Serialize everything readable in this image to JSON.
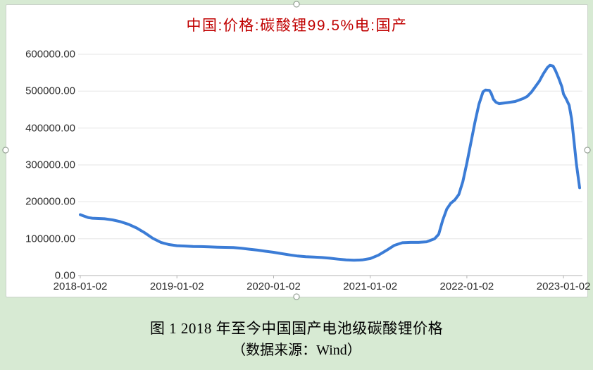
{
  "page": {
    "background_color": "#d7ead3"
  },
  "chart": {
    "title": "中国:价格:碳酸锂99.5%电:国产",
    "title_color": "#c00000",
    "line_color": "#3b7cd6",
    "grid_color": "#e6e6e6",
    "axis_color": "#b3b3b3",
    "y_ticks": [
      "600000.00",
      "500000.00",
      "400000.00",
      "300000.00",
      "200000.00",
      "100000.00",
      "0.00"
    ],
    "x_ticks": [
      "2018-01-02",
      "2019-01-02",
      "2020-01-02",
      "2021-01-02",
      "2022-01-02",
      "2023-01-02"
    ]
  },
  "caption": {
    "line1": "图 1 2018 年至今中国国产电池级碳酸锂价格",
    "line2": "（数据来源：Wind）"
  },
  "chart_data": {
    "type": "line",
    "title": "中国:价格:碳酸锂99.5%电:国产",
    "xlabel": "",
    "ylabel": "",
    "ylim": [
      0,
      600000
    ],
    "y_tick_step": 100000,
    "grid": true,
    "legend": "none",
    "line_color": "#3b7cd6",
    "x_unit": "months since 2018-01-02",
    "x_tick_positions": [
      0,
      12,
      24,
      36,
      48,
      60
    ],
    "x_tick_labels": [
      "2018-01-02",
      "2019-01-02",
      "2020-01-02",
      "2021-01-02",
      "2022-01-02",
      "2023-01-02"
    ],
    "points": [
      [
        0,
        165000
      ],
      [
        0.5,
        161000
      ],
      [
        1,
        157000
      ],
      [
        1.5,
        155500
      ],
      [
        2,
        155000
      ],
      [
        3,
        154000
      ],
      [
        4,
        151000
      ],
      [
        5,
        146000
      ],
      [
        6,
        139000
      ],
      [
        7,
        129000
      ],
      [
        8,
        116000
      ],
      [
        9,
        101000
      ],
      [
        10,
        90000
      ],
      [
        11,
        84000
      ],
      [
        12,
        81000
      ],
      [
        13,
        80000
      ],
      [
        14,
        79000
      ],
      [
        15,
        78500
      ],
      [
        16,
        78000
      ],
      [
        17,
        77000
      ],
      [
        18,
        76500
      ],
      [
        19,
        76000
      ],
      [
        20,
        74000
      ],
      [
        21,
        71500
      ],
      [
        22,
        69000
      ],
      [
        23,
        66000
      ],
      [
        24,
        63000
      ],
      [
        25,
        59500
      ],
      [
        26,
        56000
      ],
      [
        27,
        53000
      ],
      [
        28,
        51000
      ],
      [
        29,
        50000
      ],
      [
        30,
        49000
      ],
      [
        31,
        47000
      ],
      [
        32,
        44500
      ],
      [
        33,
        42500
      ],
      [
        34,
        41500
      ],
      [
        35,
        42500
      ],
      [
        36,
        46000
      ],
      [
        37,
        55000
      ],
      [
        38,
        68000
      ],
      [
        39,
        82000
      ],
      [
        40,
        89000
      ],
      [
        41,
        90000
      ],
      [
        42,
        90000
      ],
      [
        43,
        91500
      ],
      [
        44,
        100000
      ],
      [
        44.5,
        112000
      ],
      [
        45,
        150000
      ],
      [
        45.5,
        180000
      ],
      [
        46,
        196000
      ],
      [
        46.5,
        205000
      ],
      [
        47,
        220000
      ],
      [
        47.5,
        255000
      ],
      [
        48,
        305000
      ],
      [
        48.5,
        360000
      ],
      [
        49,
        415000
      ],
      [
        49.5,
        465000
      ],
      [
        50,
        498000
      ],
      [
        50.3,
        503000
      ],
      [
        50.8,
        502000
      ],
      [
        51,
        495000
      ],
      [
        51.3,
        478000
      ],
      [
        51.6,
        470000
      ],
      [
        52,
        466000
      ],
      [
        53,
        469000
      ],
      [
        54,
        472000
      ],
      [
        55,
        480000
      ],
      [
        55.5,
        486000
      ],
      [
        56,
        497000
      ],
      [
        56.5,
        512000
      ],
      [
        57,
        527000
      ],
      [
        57.5,
        547000
      ],
      [
        58,
        564000
      ],
      [
        58.3,
        570000
      ],
      [
        58.7,
        568000
      ],
      [
        59,
        556000
      ],
      [
        59.4,
        535000
      ],
      [
        59.8,
        512000
      ],
      [
        60,
        492000
      ],
      [
        60.3,
        480000
      ],
      [
        60.7,
        462000
      ],
      [
        61,
        425000
      ],
      [
        61.3,
        365000
      ],
      [
        61.6,
        303000
      ],
      [
        62,
        238000
      ]
    ]
  }
}
